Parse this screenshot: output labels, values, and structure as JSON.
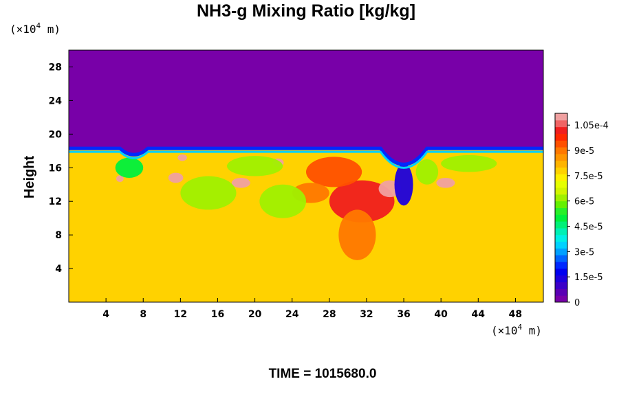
{
  "chart_data": {
    "type": "heatmap",
    "title": "NH3-g Mixing Ratio [kg/kg]",
    "ylabel": "Height",
    "x_unit_prefix": "(×10",
    "x_unit_exp": "4",
    "x_unit_suffix": " m)",
    "y_unit_prefix": "(×10",
    "y_unit_exp": "4",
    "y_unit_suffix": " m)",
    "xlim": [
      0,
      51
    ],
    "ylim": [
      0,
      30
    ],
    "x_ticks": [
      {
        "value": 4,
        "label": "4"
      },
      {
        "value": 8,
        "label": "8"
      },
      {
        "value": 12,
        "label": "12"
      },
      {
        "value": 16,
        "label": "16"
      },
      {
        "value": 20,
        "label": "20"
      },
      {
        "value": 24,
        "label": "24"
      },
      {
        "value": 28,
        "label": "28"
      },
      {
        "value": 32,
        "label": "32"
      },
      {
        "value": 36,
        "label": "36"
      },
      {
        "value": 40,
        "label": "40"
      },
      {
        "value": 44,
        "label": "44"
      },
      {
        "value": 48,
        "label": "48"
      }
    ],
    "y_ticks": [
      {
        "value": 4,
        "label": "4"
      },
      {
        "value": 8,
        "label": "8"
      },
      {
        "value": 12,
        "label": "12"
      },
      {
        "value": 16,
        "label": "16"
      },
      {
        "value": 20,
        "label": "20"
      },
      {
        "value": 24,
        "label": "24"
      },
      {
        "value": 28,
        "label": "28"
      }
    ],
    "colorbar": {
      "min": 0,
      "max": 0.000112,
      "ticks": [
        {
          "value": 0,
          "label": "0"
        },
        {
          "value": 1.5e-05,
          "label": "1.5e-5"
        },
        {
          "value": 3e-05,
          "label": "3e-5"
        },
        {
          "value": 4.5e-05,
          "label": "4.5e-5"
        },
        {
          "value": 6e-05,
          "label": "6e-5"
        },
        {
          "value": 7.5e-05,
          "label": "7.5e-5"
        },
        {
          "value": 9e-05,
          "label": "9e-5"
        },
        {
          "value": 0.000105,
          "label": "1.05e-4"
        }
      ],
      "colors": [
        "#7800a8",
        "#5a00b4",
        "#3c00c8",
        "#1e00dc",
        "#0000f0",
        "#0028ff",
        "#0064ff",
        "#00a0ff",
        "#00d2ff",
        "#00f0e6",
        "#00f0b4",
        "#00f078",
        "#00f03c",
        "#28f028",
        "#64f000",
        "#a0f000",
        "#d2f500",
        "#e6ff00",
        "#fff000",
        "#ffd200",
        "#ffb400",
        "#ff9600",
        "#ff7800",
        "#ff5000",
        "#ff2800",
        "#f01e1e",
        "#f06464",
        "#f0a0a0"
      ]
    },
    "background_value": 7.8e-05,
    "upper_value": 0,
    "features": [
      {
        "x": 31.5,
        "y": 12,
        "rx": 3.5,
        "ry": 2.5,
        "value": 0.0001
      },
      {
        "x": 34.5,
        "y": 13.5,
        "rx": 1.2,
        "ry": 1.0,
        "value": 0.000112
      },
      {
        "x": 18.5,
        "y": 14.2,
        "rx": 1.0,
        "ry": 0.6,
        "value": 0.000112
      },
      {
        "x": 11.5,
        "y": 14.8,
        "rx": 0.8,
        "ry": 0.6,
        "value": 0.000112
      },
      {
        "x": 40.5,
        "y": 14.2,
        "rx": 1.0,
        "ry": 0.6,
        "value": 0.000112
      },
      {
        "x": 5.5,
        "y": 14.7,
        "rx": 0.4,
        "ry": 0.4,
        "value": 0.000112
      },
      {
        "x": 12.2,
        "y": 17.2,
        "rx": 0.5,
        "ry": 0.4,
        "value": 0.000112
      },
      {
        "x": 22.5,
        "y": 16.6,
        "rx": 0.6,
        "ry": 0.5,
        "value": 0.000112
      },
      {
        "x": 28.5,
        "y": 15.5,
        "rx": 3.0,
        "ry": 1.8,
        "value": 9.5e-05
      },
      {
        "x": 26.0,
        "y": 13.0,
        "rx": 2.0,
        "ry": 1.2,
        "value": 9e-05
      },
      {
        "x": 36.0,
        "y": 14.0,
        "rx": 1.0,
        "ry": 2.5,
        "value": 1.5e-05
      },
      {
        "x": 15.0,
        "y": 13.0,
        "rx": 3.0,
        "ry": 2.0,
        "value": 6e-05
      },
      {
        "x": 23.0,
        "y": 12.0,
        "rx": 2.5,
        "ry": 2.0,
        "value": 6e-05
      },
      {
        "x": 31.0,
        "y": 8.0,
        "rx": 2.0,
        "ry": 3.0,
        "value": 9e-05
      },
      {
        "x": 38.5,
        "y": 15.5,
        "rx": 1.2,
        "ry": 1.5,
        "value": 6e-05
      },
      {
        "x": 20.0,
        "y": 16.2,
        "rx": 3.0,
        "ry": 1.2,
        "value": 6e-05
      },
      {
        "x": 6.5,
        "y": 16.0,
        "rx": 1.5,
        "ry": 1.2,
        "value": 5e-05
      },
      {
        "x": 43.0,
        "y": 16.5,
        "rx": 3.0,
        "ry": 1.0,
        "value": 6e-05
      }
    ]
  },
  "time_label": "TIME = 1015680.0"
}
